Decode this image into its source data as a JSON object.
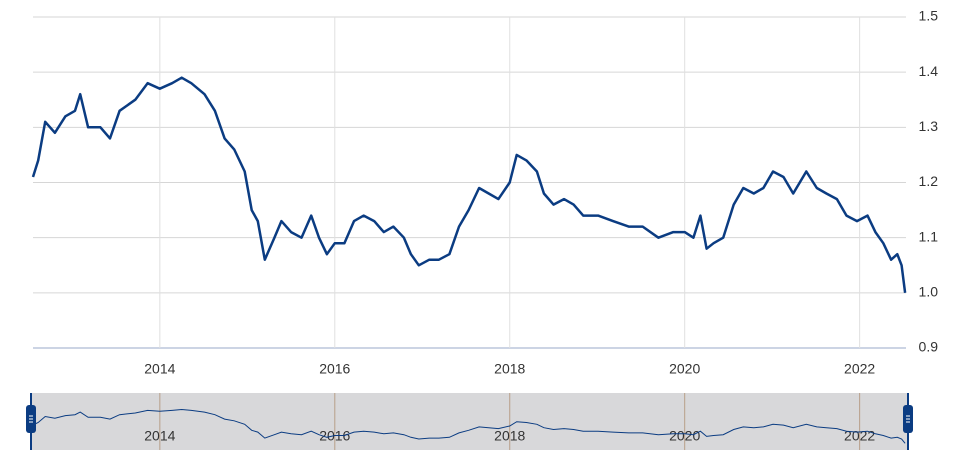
{
  "chart_data": {
    "type": "line",
    "x": [
      2012.55,
      2012.61,
      2012.69,
      2012.8,
      2012.92,
      2013.03,
      2013.09,
      2013.18,
      2013.32,
      2013.43,
      2013.54,
      2013.72,
      2013.86,
      2014.0,
      2014.14,
      2014.25,
      2014.36,
      2014.51,
      2014.63,
      2014.74,
      2014.85,
      2014.97,
      2015.05,
      2015.12,
      2015.2,
      2015.31,
      2015.39,
      2015.5,
      2015.62,
      2015.73,
      2015.82,
      2015.91,
      2016.0,
      2016.11,
      2016.22,
      2016.33,
      2016.45,
      2016.56,
      2016.67,
      2016.79,
      2016.87,
      2016.96,
      2017.08,
      2017.19,
      2017.31,
      2017.42,
      2017.53,
      2017.65,
      2017.76,
      2017.87,
      2018.0,
      2018.08,
      2018.19,
      2018.31,
      2018.39,
      2018.5,
      2018.62,
      2018.73,
      2018.84,
      2019.01,
      2019.18,
      2019.36,
      2019.52,
      2019.7,
      2019.87,
      2020.0,
      2020.1,
      2020.18,
      2020.25,
      2020.33,
      2020.44,
      2020.56,
      2020.67,
      2020.79,
      2020.9,
      2021.01,
      2021.13,
      2021.24,
      2021.39,
      2021.51,
      2021.62,
      2021.74,
      2021.85,
      2021.97,
      2022.09,
      2022.18,
      2022.27,
      2022.36,
      2022.43,
      2022.48,
      2022.52
    ],
    "series": [
      {
        "color": "#0b3c82",
        "values": [
          1.21,
          1.24,
          1.31,
          1.29,
          1.32,
          1.33,
          1.36,
          1.3,
          1.3,
          1.28,
          1.33,
          1.35,
          1.38,
          1.37,
          1.38,
          1.39,
          1.38,
          1.36,
          1.33,
          1.28,
          1.26,
          1.22,
          1.15,
          1.13,
          1.06,
          1.1,
          1.13,
          1.11,
          1.1,
          1.14,
          1.1,
          1.07,
          1.09,
          1.09,
          1.13,
          1.14,
          1.13,
          1.11,
          1.12,
          1.1,
          1.07,
          1.05,
          1.06,
          1.06,
          1.07,
          1.12,
          1.15,
          1.19,
          1.18,
          1.17,
          1.2,
          1.25,
          1.24,
          1.22,
          1.18,
          1.16,
          1.17,
          1.16,
          1.14,
          1.14,
          1.13,
          1.12,
          1.12,
          1.1,
          1.11,
          1.11,
          1.1,
          1.14,
          1.08,
          1.09,
          1.1,
          1.16,
          1.19,
          1.18,
          1.19,
          1.22,
          1.21,
          1.18,
          1.22,
          1.19,
          1.18,
          1.17,
          1.14,
          1.13,
          1.14,
          1.11,
          1.09,
          1.06,
          1.07,
          1.05,
          1.0
        ]
      }
    ],
    "xlim": [
      2012.55,
      2022.53
    ],
    "xticks": [
      2014,
      2016,
      2018,
      2020,
      2022
    ],
    "ylim": [
      0.9,
      1.5
    ],
    "yticks": [
      0.9,
      {
        "value": 1,
        "label": "1.0"
      },
      1.1,
      1.2,
      1.3,
      1.4,
      1.5
    ],
    "grid": true
  }
}
